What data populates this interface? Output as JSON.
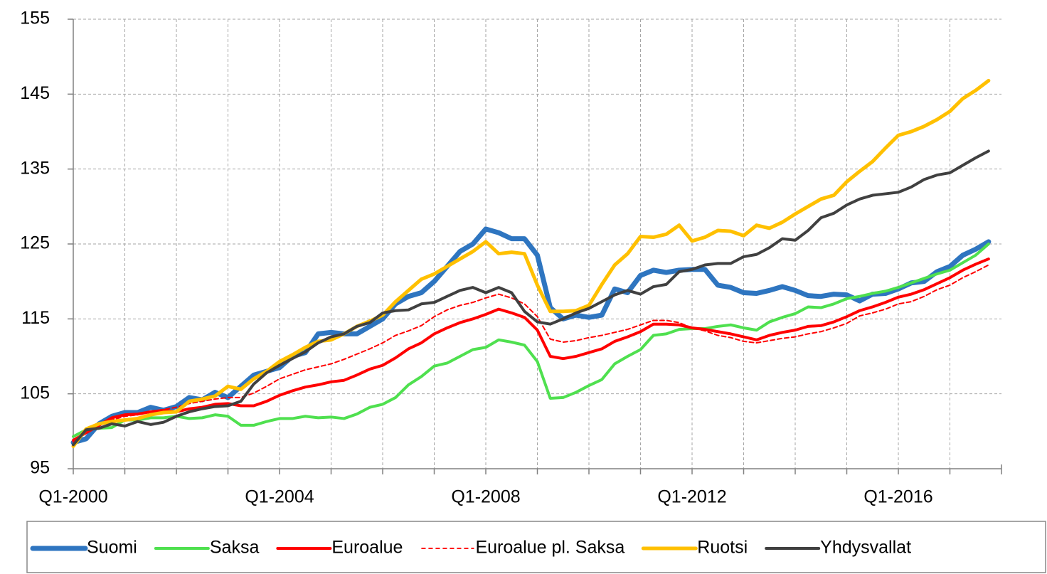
{
  "chart_data": {
    "type": "line",
    "categories": [
      "Q1-2000",
      null,
      null,
      null,
      null,
      null,
      null,
      null,
      null,
      null,
      null,
      null,
      null,
      null,
      null,
      null,
      "Q1-2004",
      null,
      null,
      null,
      null,
      null,
      null,
      null,
      null,
      null,
      null,
      null,
      null,
      null,
      null,
      null,
      "Q1-2008",
      null,
      null,
      null,
      null,
      null,
      null,
      null,
      null,
      null,
      null,
      null,
      null,
      null,
      null,
      null,
      "Q1-2012",
      null,
      null,
      null,
      null,
      null,
      null,
      null,
      null,
      null,
      null,
      null,
      null,
      null,
      null,
      null,
      "Q1-2016",
      null,
      null,
      null,
      null,
      null,
      null,
      null
    ],
    "ylim": [
      95,
      155
    ],
    "yticks": [
      95,
      105,
      115,
      125,
      135,
      145,
      155
    ],
    "grid": true,
    "legend": "bottom",
    "series": [
      {
        "name": "Suomi",
        "color": "#2e75c0",
        "values": [
          98.5,
          99,
          101,
          102,
          102.5,
          102.5,
          103.2,
          102.8,
          103.3,
          104.5,
          104.2,
          105.2,
          104.5,
          106,
          107.5,
          108,
          108.5,
          110,
          110.5,
          113,
          113.2,
          113,
          113,
          114,
          115,
          117,
          118,
          118.5,
          120,
          122,
          124,
          125,
          127,
          126.5,
          125.7,
          125.7,
          123.5,
          116.5,
          115,
          115.5,
          115.2,
          115.5,
          119,
          118.5,
          120.8,
          121.5,
          121.2,
          121.5,
          121.6,
          121.6,
          119.5,
          119.2,
          118.5,
          118.4,
          118.8,
          119.3,
          118.8,
          118.1,
          118,
          118.3,
          118.2,
          117.4,
          118.3,
          118.4,
          119,
          119.8,
          120,
          121.3,
          122,
          123.5,
          124.3,
          125.3
        ]
      },
      {
        "name": "Saksa",
        "color": "#4fe04f",
        "values": [
          99.3,
          100.2,
          100.4,
          100.5,
          101.5,
          101.5,
          101.8,
          101.8,
          102,
          101.7,
          101.8,
          102.2,
          102,
          100.8,
          100.8,
          101.3,
          101.7,
          101.7,
          102,
          101.8,
          101.9,
          101.7,
          102.3,
          103.2,
          103.6,
          104.5,
          106.2,
          107.3,
          108.7,
          109.1,
          110,
          110.9,
          111.2,
          112.2,
          111.9,
          111.5,
          109.3,
          104.4,
          104.5,
          105.2,
          106.1,
          106.9,
          109,
          110,
          110.9,
          112.8,
          113,
          113.6,
          113.7,
          113.7,
          114,
          114.2,
          113.8,
          113.5,
          114.6,
          115.2,
          115.7,
          116.6,
          116.5,
          117,
          117.7,
          118,
          118.4,
          118.7,
          119.2,
          119.8,
          120.4,
          121,
          121.5,
          122.5,
          123.5,
          125
        ]
      },
      {
        "name": "Euroalue",
        "color": "#ff0000",
        "values": [
          98.8,
          99.8,
          100.8,
          101.8,
          102.2,
          102.3,
          102.6,
          102.8,
          102.6,
          103,
          103.2,
          103.6,
          103.7,
          103.4,
          103.4,
          104,
          104.8,
          105.4,
          105.9,
          106.2,
          106.6,
          106.8,
          107.5,
          108.3,
          108.8,
          109.8,
          111,
          111.8,
          113,
          113.8,
          114.5,
          115,
          115.6,
          116.3,
          115.8,
          115.2,
          113.5,
          110,
          109.7,
          110,
          110.5,
          111,
          112,
          112.6,
          113.3,
          114.3,
          114.3,
          114.2,
          113.8,
          113.6,
          113.3,
          113,
          112.6,
          112.2,
          112.8,
          113.2,
          113.5,
          114,
          114.1,
          114.6,
          115.3,
          116.1,
          116.6,
          117.2,
          117.9,
          118.3,
          118.9,
          119.7,
          120.5,
          121.5,
          122.3,
          123
        ]
      },
      {
        "name": "Euroalue pl. Saksa",
        "color": "#ff0000",
        "dash": true,
        "values": [
          98.5,
          99.8,
          100.8,
          101.5,
          102,
          102.2,
          102.6,
          102.9,
          103.2,
          103.7,
          104,
          104.3,
          104.5,
          104.5,
          105.1,
          106,
          107,
          107.6,
          108.2,
          108.6,
          109,
          109.6,
          110.3,
          111,
          111.8,
          112.8,
          113.4,
          114.1,
          115.3,
          116.2,
          116.8,
          117.2,
          117.8,
          118.3,
          117.8,
          117,
          115.3,
          112.3,
          111.9,
          112.1,
          112.5,
          112.8,
          113.2,
          113.6,
          114.2,
          114.8,
          114.8,
          114.5,
          113.8,
          113.4,
          112.8,
          112.5,
          112,
          111.8,
          112.1,
          112.4,
          112.6,
          113,
          113.3,
          113.8,
          114.4,
          115.4,
          115.8,
          116.3,
          117,
          117.3,
          118,
          118.9,
          119.5,
          120.5,
          121.3,
          122.2
        ]
      },
      {
        "name": "Ruotsi",
        "color": "#ffc000",
        "values": [
          98,
          100.3,
          101,
          101.3,
          101.5,
          101.7,
          102.2,
          102.5,
          102.6,
          104,
          104.3,
          104.7,
          106,
          105.6,
          107,
          108,
          109.3,
          110.2,
          111.2,
          112,
          112.2,
          113,
          114,
          114.7,
          115.5,
          117.3,
          118.8,
          120.3,
          121,
          122,
          123,
          124,
          125.3,
          123.7,
          123.9,
          123.7,
          119.5,
          116,
          116,
          116.1,
          116.8,
          119.6,
          122.2,
          123.7,
          126,
          125.9,
          126.3,
          127.5,
          125.4,
          125.9,
          126.8,
          126.7,
          126.1,
          127.5,
          127.1,
          127.9,
          129,
          130,
          131,
          131.5,
          133.3,
          134.7,
          136,
          137.8,
          139.5,
          140,
          140.7,
          141.6,
          142.7,
          144.4,
          145.5,
          146.8
        ]
      },
      {
        "name": "Yhdysvallat",
        "color": "#404040",
        "values": [
          98.2,
          100.2,
          100.4,
          101,
          100.7,
          101.3,
          100.9,
          101.2,
          102,
          102.6,
          103,
          103.3,
          103.4,
          104,
          106.3,
          107.8,
          108.8,
          109.7,
          110.6,
          111.8,
          112.6,
          113,
          114,
          114.5,
          115.8,
          116.1,
          116.2,
          117,
          117.2,
          118,
          118.8,
          119.2,
          118.5,
          119.2,
          118.5,
          116,
          114.6,
          114.3,
          115,
          115.8,
          116.4,
          117.3,
          118.2,
          118.8,
          118.3,
          119.3,
          119.6,
          121.3,
          121.6,
          122.2,
          122.4,
          122.4,
          123.3,
          123.6,
          124.5,
          125.7,
          125.5,
          126.8,
          128.5,
          129.1,
          130.2,
          131,
          131.5,
          131.7,
          131.9,
          132.6,
          133.6,
          134.2,
          134.5,
          135.5,
          136.5,
          137.4
        ]
      }
    ]
  }
}
